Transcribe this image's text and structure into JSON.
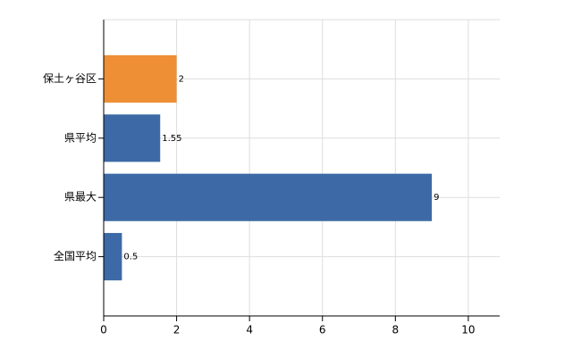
{
  "chart_data": {
    "type": "barh",
    "categories": [
      "保土ヶ谷区",
      "県平均",
      "県最大",
      "全国平均"
    ],
    "values": [
      2,
      1.55,
      9,
      0.5
    ],
    "colors": [
      "#ee8f35",
      "#3d6aa6",
      "#3d6aa6",
      "#3d6aa6"
    ],
    "xlim": [
      0,
      10.86
    ],
    "xticks": [
      0,
      2,
      4,
      6,
      8,
      10
    ],
    "grid": true
  }
}
